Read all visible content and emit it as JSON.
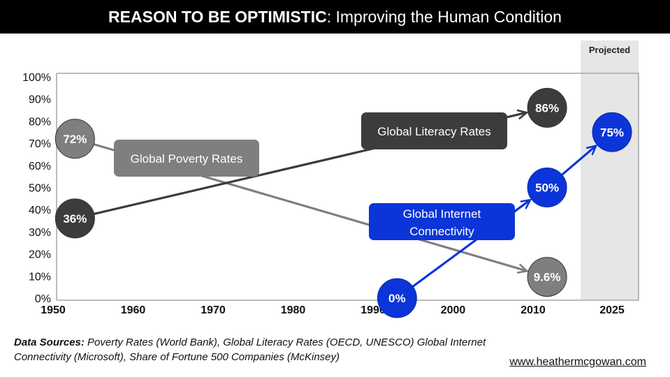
{
  "header": {
    "title_bold": "REASON TO BE OPTIMISTIC",
    "title_rest": ": Improving the Human Condition"
  },
  "chart_data": {
    "type": "line",
    "title": "REASON TO BE OPTIMISTIC: Improving the Human Condition",
    "xlabel": "",
    "ylabel": "",
    "ylim": [
      0,
      100
    ],
    "yticks": [
      "0%",
      "10%",
      "20%",
      "30%",
      "40%",
      "50%",
      "60%",
      "70%",
      "80%",
      "90%",
      "100%"
    ],
    "xticks": [
      "1950",
      "1960",
      "1970",
      "1980",
      "1990",
      "2000",
      "2010",
      "2025"
    ],
    "projected_label": "Projected",
    "projected_from": 2016,
    "grid": false,
    "series": [
      {
        "name": "Global Poverty Rates",
        "color": "#7f7f7f",
        "points": [
          {
            "x": 1953,
            "y": 72,
            "label": "72%"
          },
          {
            "x": 2012,
            "y": 9.6,
            "label": "9.6%"
          }
        ]
      },
      {
        "name": "Global Literacy Rates",
        "color": "#3c3c3c",
        "points": [
          {
            "x": 1953,
            "y": 36,
            "label": "36%"
          },
          {
            "x": 2012,
            "y": 86,
            "label": "86%"
          }
        ]
      },
      {
        "name": "Global Internet Connectivity",
        "label_lines": [
          "Global Internet",
          "Connectivity"
        ],
        "color": "#0b35d8",
        "points": [
          {
            "x": 1993,
            "y": 0,
            "label": "0%"
          },
          {
            "x": 2012,
            "y": 50,
            "label": "50%"
          },
          {
            "x": 2022,
            "y": 75,
            "label": "75%"
          }
        ]
      }
    ]
  },
  "footer": {
    "sources_bold": "Data Sources:",
    "sources_line1": " Poverty Rates (World Bank),  Global Literacy Rates (OECD, UNESCO) Global Internet",
    "sources_line2": "Connectivity (Microsoft), Share of Fortune 500 Companies (McKinsey)",
    "website": "www.heathermcgowan.com"
  }
}
